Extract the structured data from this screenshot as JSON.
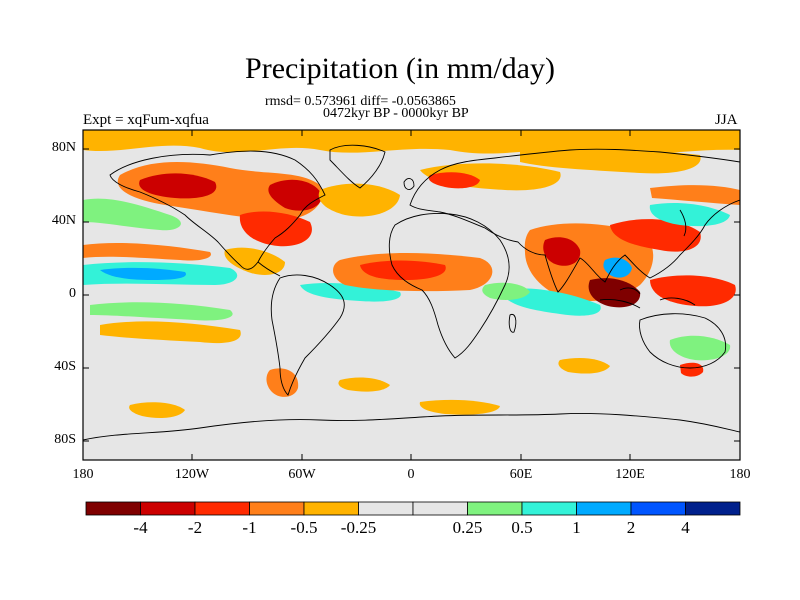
{
  "title": "Precipitation (in mm/day)",
  "subtitle_stats": "rmsd= 0.573961 diff= -0.0563865",
  "subtitle_period": "0472kyr BP - 0000kyr BP",
  "experiment_label": "Expt = xqFum-xqfua",
  "season_label": "JJA",
  "y_ticks": [
    "80N",
    "40N",
    "0",
    "40S",
    "80S"
  ],
  "x_ticks": [
    "180",
    "120W",
    "60W",
    "0",
    "60E",
    "120E",
    "180"
  ],
  "colorbar": {
    "colors": [
      "#7f0000",
      "#cc0000",
      "#ff2a00",
      "#ff7f1a",
      "#ffb300",
      "#e6e6e6",
      "#e6e6e6",
      "#7ff27f",
      "#33f2d8",
      "#00aaff",
      "#0055ff",
      "#00208c"
    ],
    "labels": [
      "-4",
      "-2",
      "-1",
      "-0.5",
      "-0.25",
      "0.25",
      "0.5",
      "1",
      "2",
      "4"
    ]
  },
  "colors": {
    "land_outline": "#000000",
    "neutral": "#e6e6e6"
  }
}
